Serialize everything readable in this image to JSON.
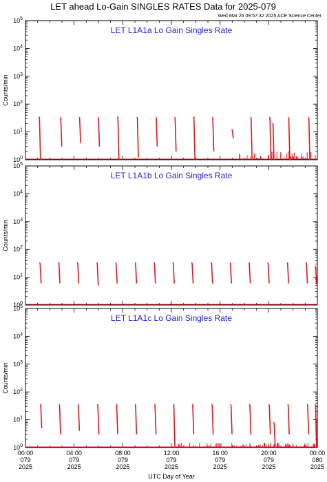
{
  "header": {
    "title": "LET ahead Lo-Gain SINGLES RATES Data for 2025-079",
    "timestamp": "Wed Mar 26 09:57:32 2025 ACE Science Center"
  },
  "axes": {
    "ylabel": "Counts/min",
    "xlabel": "UTC Day of Year",
    "ytick_base": "10",
    "ytick_exponents": [
      "0",
      "1",
      "2",
      "3",
      "4",
      "5"
    ],
    "xtick_labels": [
      {
        "time": "00:00",
        "doy": "079",
        "year": "2025"
      },
      {
        "time": "04:00",
        "doy": "079",
        "year": "2025"
      },
      {
        "time": "08:00",
        "doy": "079",
        "year": "2025"
      },
      {
        "time": "12:00",
        "doy": "079",
        "year": "2025"
      },
      {
        "time": "16:00",
        "doy": "079",
        "year": "2025"
      },
      {
        "time": "20:00",
        "doy": "079",
        "year": "2025"
      },
      {
        "time": "00:00",
        "doy": "080",
        "year": "2025"
      }
    ]
  },
  "colors": {
    "data": "#e8141c",
    "panel_title": "#1f1fd0",
    "axes": "#000000"
  },
  "chart_data": [
    {
      "type": "line",
      "title": "LET L1A1a Lo Gain Singles Rate",
      "xlabel": "UTC Day of Year",
      "ylabel": "Counts/min",
      "x_unit": "hours UTC, DOY 079",
      "xlim": [
        0,
        24
      ],
      "ylim": [
        1,
        100000
      ],
      "yscale": "log",
      "spikes": [
        {
          "x": 1.15,
          "ytop": 35,
          "ybottom": 1
        },
        {
          "x": 2.9,
          "ytop": 33,
          "ybottom": 3
        },
        {
          "x": 4.45,
          "ytop": 33,
          "ybottom": 4
        },
        {
          "x": 6.0,
          "ytop": 33,
          "ybottom": 3
        },
        {
          "x": 7.6,
          "ytop": 35,
          "ybottom": 1
        },
        {
          "x": 9.2,
          "ytop": 33,
          "ybottom": 1.2
        },
        {
          "x": 10.75,
          "ytop": 33,
          "ybottom": 3
        },
        {
          "x": 12.3,
          "ytop": 33,
          "ybottom": 2
        },
        {
          "x": 13.85,
          "ytop": 35,
          "ybottom": 1
        },
        {
          "x": 15.4,
          "ytop": 33,
          "ybottom": 2
        },
        {
          "x": 17.0,
          "ytop": 12,
          "ybottom": 6
        },
        {
          "x": 18.55,
          "ytop": 33,
          "ybottom": 1
        },
        {
          "x": 20.1,
          "ytop": 33,
          "ybottom": 1
        },
        {
          "x": 20.35,
          "ytop": 20,
          "ybottom": 1
        },
        {
          "x": 21.65,
          "ytop": 33,
          "ybottom": 1
        },
        {
          "x": 23.3,
          "ytop": 33,
          "ybottom": 1
        }
      ],
      "noise": {
        "from": 17.5,
        "to": 24,
        "ymax": 2
      }
    },
    {
      "type": "line",
      "title": "LET L1A1b Lo Gain Singles Rate",
      "xlabel": "UTC Day of Year",
      "ylabel": "Counts/min",
      "x_unit": "hours UTC, DOY 079",
      "xlim": [
        0,
        24
      ],
      "ylim": [
        1,
        100000
      ],
      "yscale": "log",
      "spikes": [
        {
          "x": 1.2,
          "ytop": 33,
          "ybottom": 6
        },
        {
          "x": 2.75,
          "ytop": 33,
          "ybottom": 6
        },
        {
          "x": 4.3,
          "ytop": 33,
          "ybottom": 6
        },
        {
          "x": 5.9,
          "ytop": 33,
          "ybottom": 5
        },
        {
          "x": 7.45,
          "ytop": 33,
          "ybottom": 6
        },
        {
          "x": 9.05,
          "ytop": 33,
          "ybottom": 6
        },
        {
          "x": 10.6,
          "ytop": 33,
          "ybottom": 6
        },
        {
          "x": 12.15,
          "ytop": 33,
          "ybottom": 6
        },
        {
          "x": 13.7,
          "ytop": 33,
          "ybottom": 6
        },
        {
          "x": 15.3,
          "ytop": 33,
          "ybottom": 6
        },
        {
          "x": 16.85,
          "ytop": 33,
          "ybottom": 6
        },
        {
          "x": 18.4,
          "ytop": 33,
          "ybottom": 6
        },
        {
          "x": 19.95,
          "ytop": 33,
          "ybottom": 6
        },
        {
          "x": 21.55,
          "ytop": 33,
          "ybottom": 6
        },
        {
          "x": 23.1,
          "ytop": 33,
          "ybottom": 6
        },
        {
          "x": 23.85,
          "ytop": 25,
          "ybottom": 6
        }
      ],
      "noise": {
        "from": 17.5,
        "to": 24,
        "ymax": 1.1
      }
    },
    {
      "type": "line",
      "title": "LET L1A1c Lo Gain Singles Rate",
      "xlabel": "UTC Day of Year",
      "ylabel": "Counts/min",
      "x_unit": "hours UTC, DOY 079",
      "xlim": [
        0,
        24
      ],
      "ylim": [
        1,
        100000
      ],
      "yscale": "log",
      "spikes": [
        {
          "x": 1.25,
          "ytop": 35,
          "ybottom": 5
        },
        {
          "x": 2.8,
          "ytop": 35,
          "ybottom": 3
        },
        {
          "x": 4.35,
          "ytop": 35,
          "ybottom": 4
        },
        {
          "x": 5.95,
          "ytop": 35,
          "ybottom": 3
        },
        {
          "x": 7.5,
          "ytop": 35,
          "ybottom": 3
        },
        {
          "x": 9.05,
          "ytop": 35,
          "ybottom": 3
        },
        {
          "x": 10.65,
          "ytop": 35,
          "ybottom": 3
        },
        {
          "x": 12.2,
          "ytop": 35,
          "ybottom": 1
        },
        {
          "x": 13.75,
          "ytop": 35,
          "ybottom": 3
        },
        {
          "x": 15.35,
          "ytop": 35,
          "ybottom": 3
        },
        {
          "x": 16.9,
          "ytop": 35,
          "ybottom": 3
        },
        {
          "x": 18.45,
          "ytop": 35,
          "ybottom": 3
        },
        {
          "x": 20.05,
          "ytop": 35,
          "ybottom": 3
        },
        {
          "x": 20.45,
          "ytop": 8,
          "ybottom": 1
        },
        {
          "x": 21.6,
          "ytop": 35,
          "ybottom": 3
        },
        {
          "x": 23.2,
          "ytop": 35,
          "ybottom": 3
        },
        {
          "x": 23.85,
          "ytop": 35,
          "ybottom": 1
        }
      ],
      "noise": {
        "from": 12.3,
        "to": 24,
        "ymax": 1.5
      }
    }
  ]
}
